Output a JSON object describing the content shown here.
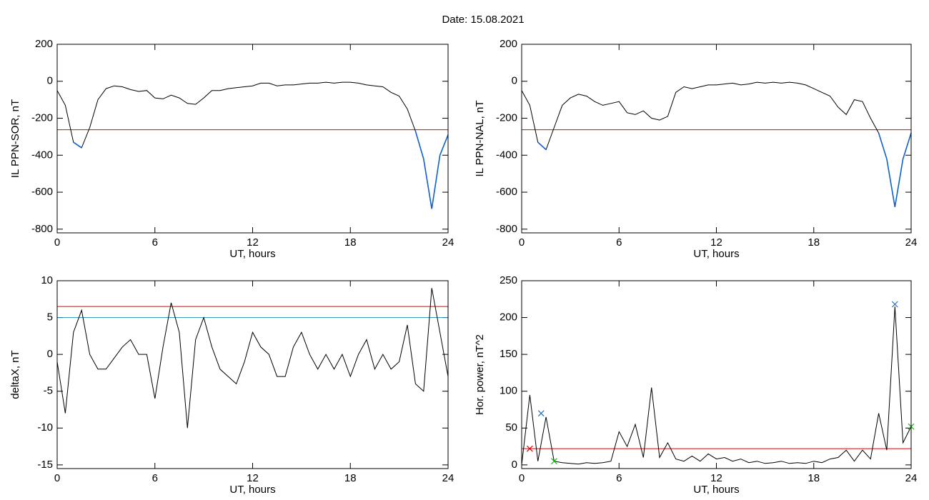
{
  "title": "Date:  15.08.2021",
  "chart_data": [
    {
      "type": "line",
      "xlabel": "UT, hours",
      "ylabel": "IL PPN-SOR, nT",
      "xlim": [
        0,
        24
      ],
      "xticks": [
        0,
        6,
        12,
        18,
        24
      ],
      "ylim": [
        -820,
        200
      ],
      "yticks": [
        -800,
        -600,
        -400,
        -200,
        0,
        200
      ],
      "x": [
        0,
        0.5,
        1,
        1.5,
        2,
        2.5,
        3,
        3.5,
        4,
        4.5,
        5,
        5.5,
        6,
        6.5,
        7,
        7.5,
        8,
        8.5,
        9,
        9.5,
        10,
        10.5,
        11,
        11.5,
        12,
        12.5,
        13,
        13.5,
        14,
        14.5,
        15,
        15.5,
        16,
        16.5,
        17,
        17.5,
        18,
        18.5,
        19,
        19.5,
        20,
        20.5,
        21,
        21.5,
        22,
        22.5,
        23,
        23.5,
        24
      ],
      "series": [
        {
          "color": "#000000",
          "values": [
            -50,
            -130,
            -330,
            -360,
            -250,
            -100,
            -40,
            -25,
            -30,
            -45,
            -55,
            -50,
            -90,
            -95,
            -75,
            -90,
            -120,
            -125,
            -90,
            -50,
            -50,
            -40,
            -35,
            -30,
            -25,
            -10,
            -10,
            -25,
            -20,
            -20,
            -15,
            -10,
            -10,
            -5,
            -10,
            -5,
            -5,
            -10,
            -20,
            -25,
            -30,
            -60,
            -80,
            -150,
            -270,
            -420,
            -690,
            -400,
            -290
          ]
        },
        {
          "color": "#1060d0",
          "values": [
            null,
            null,
            -330,
            -360,
            null,
            null,
            null,
            null,
            null,
            null,
            null,
            null,
            null,
            null,
            null,
            null,
            null,
            null,
            null,
            null,
            null,
            null,
            null,
            null,
            null,
            null,
            null,
            null,
            null,
            null,
            null,
            null,
            null,
            null,
            null,
            null,
            null,
            null,
            null,
            null,
            null,
            null,
            null,
            null,
            -270,
            -420,
            -690,
            -400,
            -290
          ]
        }
      ],
      "hlines": [
        {
          "value": -262,
          "color": "#e00000"
        }
      ]
    },
    {
      "type": "line",
      "xlabel": "UT, hours",
      "ylabel": "IL PPN-NAL, nT",
      "xlim": [
        0,
        24
      ],
      "xticks": [
        0,
        6,
        12,
        18,
        24
      ],
      "ylim": [
        -820,
        200
      ],
      "yticks": [
        -800,
        -600,
        -400,
        -200,
        0,
        200
      ],
      "x": [
        0,
        0.5,
        1,
        1.5,
        2,
        2.5,
        3,
        3.5,
        4,
        4.5,
        5,
        5.5,
        6,
        6.5,
        7,
        7.5,
        8,
        8.5,
        9,
        9.5,
        10,
        10.5,
        11,
        11.5,
        12,
        12.5,
        13,
        13.5,
        14,
        14.5,
        15,
        15.5,
        16,
        16.5,
        17,
        17.5,
        18,
        18.5,
        19,
        19.5,
        20,
        20.5,
        21,
        21.5,
        22,
        22.5,
        23,
        23.5,
        24
      ],
      "series": [
        {
          "color": "#000000",
          "values": [
            -50,
            -130,
            -330,
            -370,
            -250,
            -130,
            -90,
            -70,
            -80,
            -110,
            -130,
            -120,
            -110,
            -170,
            -180,
            -160,
            -200,
            -210,
            -190,
            -60,
            -30,
            -40,
            -30,
            -20,
            -20,
            -15,
            -10,
            -20,
            -15,
            -5,
            -10,
            -5,
            -10,
            -5,
            -10,
            -20,
            -40,
            -60,
            -80,
            -140,
            -180,
            -100,
            -110,
            -200,
            -280,
            -420,
            -680,
            -420,
            -280
          ]
        },
        {
          "color": "#1060d0",
          "values": [
            null,
            null,
            -330,
            -370,
            null,
            null,
            null,
            null,
            null,
            null,
            null,
            null,
            null,
            null,
            null,
            null,
            null,
            null,
            null,
            null,
            null,
            null,
            null,
            null,
            null,
            null,
            null,
            null,
            null,
            null,
            null,
            null,
            null,
            null,
            null,
            null,
            null,
            null,
            null,
            null,
            null,
            null,
            null,
            null,
            -280,
            -420,
            -680,
            -420,
            -280
          ]
        }
      ],
      "hlines": [
        {
          "value": -262,
          "color": "#e00000"
        }
      ]
    },
    {
      "type": "line",
      "xlabel": "UT, hours",
      "ylabel": "deltaX, nT",
      "xlim": [
        0,
        24
      ],
      "xticks": [
        0,
        6,
        12,
        18,
        24
      ],
      "ylim": [
        -15.5,
        10
      ],
      "yticks": [
        -15,
        -10,
        -5,
        0,
        5,
        10
      ],
      "x": [
        0,
        0.5,
        1,
        1.5,
        2,
        2.5,
        3,
        3.5,
        4,
        4.5,
        5,
        5.5,
        6,
        6.5,
        7,
        7.5,
        8,
        8.5,
        9,
        9.5,
        10,
        10.5,
        11,
        11.5,
        12,
        12.5,
        13,
        13.5,
        14,
        14.5,
        15,
        15.5,
        16,
        16.5,
        17,
        17.5,
        18,
        18.5,
        19,
        19.5,
        20,
        20.5,
        21,
        21.5,
        22,
        22.5,
        23,
        23.5,
        24
      ],
      "series": [
        {
          "color": "#000000",
          "values": [
            -1,
            -8,
            3,
            6,
            0,
            -2,
            -2,
            -0.5,
            1,
            2,
            0,
            0,
            -6,
            1,
            7,
            3,
            -10,
            2,
            5,
            1,
            -2,
            -3,
            -4,
            -1,
            3,
            1,
            0,
            -3,
            -3,
            1,
            3,
            0,
            -2,
            0,
            -2,
            0,
            -3,
            0,
            2,
            -2,
            0,
            -2,
            -1,
            4,
            -4,
            -5,
            9,
            3,
            -3
          ]
        }
      ],
      "hlines": [
        {
          "value": 6.5,
          "color": "#e00000"
        },
        {
          "value": 5,
          "color": "#2090b0"
        }
      ]
    },
    {
      "type": "line",
      "xlabel": "UT, hours",
      "ylabel": "Hor. power, nT^2",
      "xlim": [
        0,
        24
      ],
      "xticks": [
        0,
        6,
        12,
        18,
        24
      ],
      "ylim": [
        -5,
        250
      ],
      "yticks": [
        0,
        50,
        100,
        150,
        200,
        250
      ],
      "x": [
        0,
        0.5,
        1,
        1.5,
        2,
        2.5,
        3,
        3.5,
        4,
        4.5,
        5,
        5.5,
        6,
        6.5,
        7,
        7.5,
        8,
        8.5,
        9,
        9.5,
        10,
        10.5,
        11,
        11.5,
        12,
        12.5,
        13,
        13.5,
        14,
        14.5,
        15,
        15.5,
        16,
        16.5,
        17,
        17.5,
        18,
        18.5,
        19,
        19.5,
        20,
        20.5,
        21,
        21.5,
        22,
        22.5,
        23,
        23.5,
        24
      ],
      "series": [
        {
          "color": "#000000",
          "values": [
            0,
            95,
            5,
            65,
            5,
            3,
            2,
            1,
            3,
            2,
            3,
            5,
            45,
            25,
            55,
            10,
            105,
            10,
            30,
            8,
            5,
            12,
            5,
            15,
            8,
            10,
            5,
            8,
            3,
            5,
            2,
            3,
            5,
            2,
            3,
            2,
            5,
            3,
            8,
            10,
            20,
            5,
            20,
            8,
            70,
            20,
            215,
            30,
            52
          ]
        }
      ],
      "points": [
        {
          "x": 0.5,
          "y": 22,
          "color": "#e00000"
        },
        {
          "x": 1.2,
          "y": 70,
          "color": "#2070c0"
        },
        {
          "x": 2,
          "y": 5,
          "color": "#20b020"
        },
        {
          "x": 23,
          "y": 218,
          "color": "#2070c0"
        },
        {
          "x": 24,
          "y": 52,
          "color": "#20b020"
        }
      ],
      "hlines": [
        {
          "value": 22,
          "color": "#e00000"
        }
      ]
    }
  ]
}
